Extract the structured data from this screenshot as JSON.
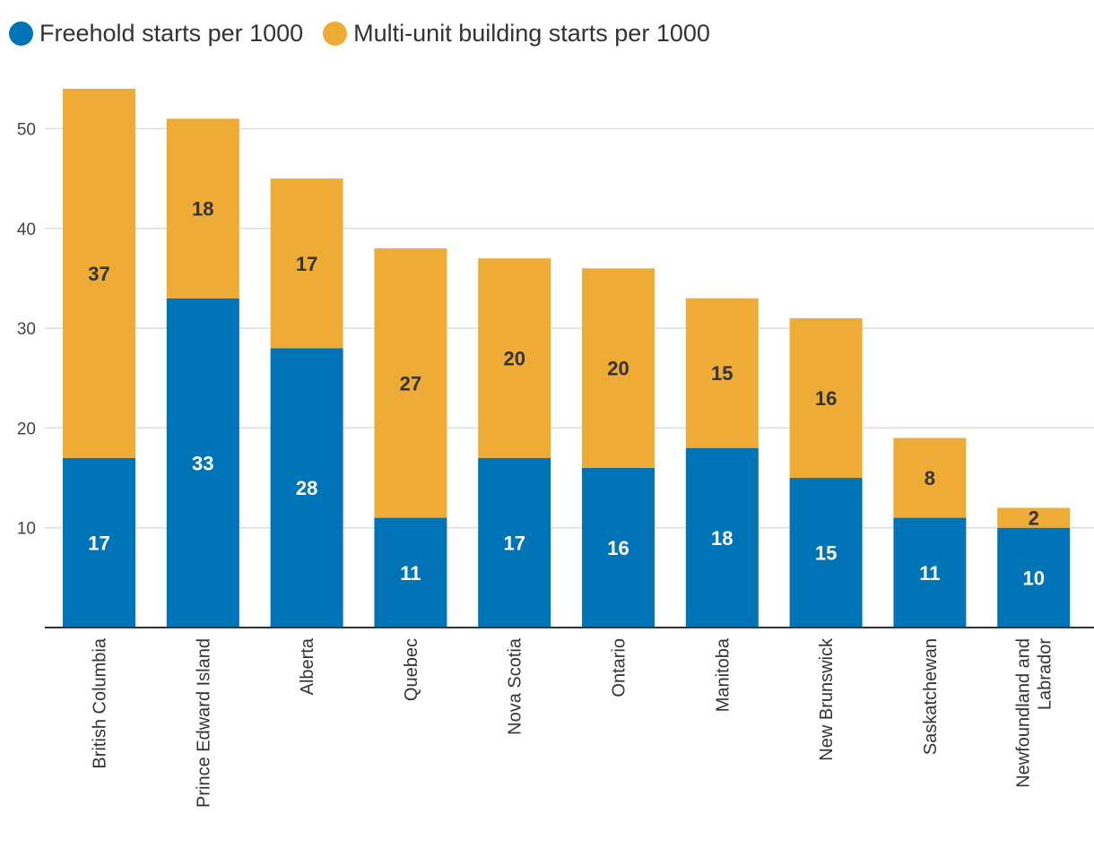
{
  "colors": {
    "freehold": "#0174b8",
    "multi": "#eeac36",
    "grid": "#dddddd",
    "axis": "#333333",
    "label_on_blue": "#ffffff",
    "label_on_orange": "#333333"
  },
  "legend": [
    {
      "label": "Freehold starts per 1000",
      "color_key": "freehold"
    },
    {
      "label": "Multi-unit building starts per 1000",
      "color_key": "multi"
    }
  ],
  "chart_data": {
    "type": "bar",
    "stacked": true,
    "categories": [
      "British Columbia",
      "Prince Edward Island",
      "Alberta",
      "Quebec",
      "Nova Scotia",
      "Ontario",
      "Manitoba",
      "New Brunswick",
      "Saskatchewan",
      [
        "Newfoundland and",
        "Labrador"
      ]
    ],
    "series": [
      {
        "name": "Freehold starts per 1000",
        "values": [
          17,
          33,
          28,
          11,
          17,
          16,
          18,
          15,
          11,
          10
        ]
      },
      {
        "name": "Multi-unit building starts per 1000",
        "values": [
          37,
          18,
          17,
          27,
          20,
          20,
          15,
          16,
          8,
          2
        ]
      }
    ],
    "totals": [
      54,
      51,
      45,
      38,
      37,
      36,
      33,
      31,
      19,
      12
    ],
    "yticks": [
      10,
      20,
      30,
      40,
      50
    ],
    "ylim": [
      0,
      54
    ],
    "grid": true,
    "legend_position": "top-left",
    "title": "",
    "xlabel": "",
    "ylabel": ""
  }
}
